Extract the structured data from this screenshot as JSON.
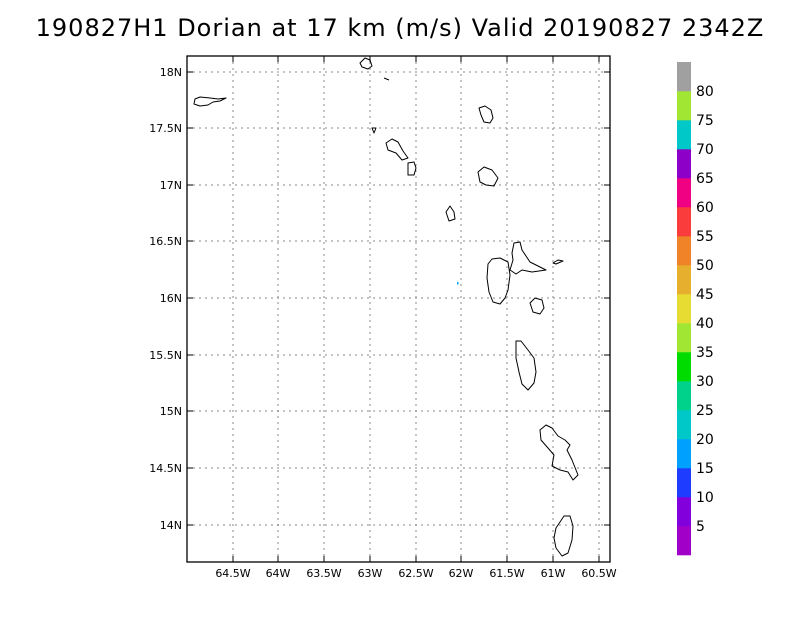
{
  "title": "190827H1 Dorian at 17 km (m/s) Valid 20190827 2342Z",
  "map": {
    "lat_labels": [
      "18N",
      "17.5N",
      "17N",
      "16.5N",
      "16N",
      "15.5N",
      "15N",
      "14.5N",
      "14N"
    ],
    "lon_labels": [
      "64.5W",
      "64W",
      "63.5W",
      "63W",
      "62.5W",
      "62W",
      "61.5W",
      "61W",
      "60.5W"
    ],
    "grid": true,
    "data_point_color": "#00a0ff"
  },
  "colorbar": {
    "labels": [
      "5",
      "10",
      "15",
      "20",
      "25",
      "30",
      "35",
      "40",
      "45",
      "50",
      "55",
      "60",
      "65",
      "70",
      "75",
      "80"
    ],
    "colors": [
      "#a000c8",
      "#8200dc",
      "#1e3cff",
      "#00a0ff",
      "#00c8c8",
      "#00d28c",
      "#00dc00",
      "#a0e632",
      "#e6dc32",
      "#e6af2d",
      "#f08228",
      "#fa3c3c",
      "#f00082",
      "#8c00c8",
      "#00c8c8",
      "#a0e632",
      "#a0a0a0"
    ]
  }
}
